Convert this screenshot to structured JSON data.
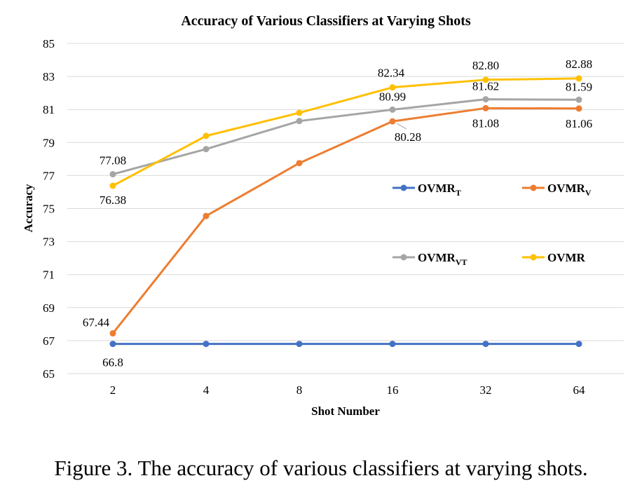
{
  "chart_data": {
    "type": "line",
    "title": "Accuracy of Various Classifiers at Varying Shots",
    "xlabel": "Shot Number",
    "ylabel": "Accuracy",
    "categories": [
      "2",
      "4",
      "8",
      "16",
      "32",
      "64"
    ],
    "ylim": [
      65,
      85
    ],
    "yticks": [
      65,
      67,
      69,
      71,
      73,
      75,
      77,
      79,
      81,
      83,
      85
    ],
    "grid": true,
    "legend_position": "inside-right",
    "series": [
      {
        "name": "OVMR",
        "name_sub": "T",
        "color": "#4472C4",
        "values": [
          66.8,
          66.8,
          66.8,
          66.8,
          66.8,
          66.8
        ],
        "labels": [
          "66.8",
          "",
          "",
          "",
          "",
          ""
        ]
      },
      {
        "name": "OVMR",
        "name_sub": "V",
        "color": "#ED7D31",
        "values": [
          67.44,
          74.55,
          77.75,
          80.28,
          81.08,
          81.06
        ],
        "labels": [
          "67.44",
          "",
          "",
          "80.28",
          "81.08",
          "81.06"
        ]
      },
      {
        "name": "OVMR",
        "name_sub": "VT",
        "color": "#A5A5A5",
        "values": [
          77.08,
          78.6,
          80.3,
          80.99,
          81.62,
          81.59
        ],
        "labels": [
          "77.08",
          "",
          "",
          "80.99",
          "81.62",
          "81.59"
        ]
      },
      {
        "name": "OVMR",
        "name_sub": "",
        "color": "#FFC000",
        "values": [
          76.38,
          79.4,
          80.8,
          82.34,
          82.8,
          82.88
        ],
        "labels": [
          "76.38",
          "",
          "",
          "82.34",
          "82.80",
          "82.88"
        ]
      }
    ]
  },
  "caption": "Figure 3. The accuracy of various classifiers at varying shots."
}
